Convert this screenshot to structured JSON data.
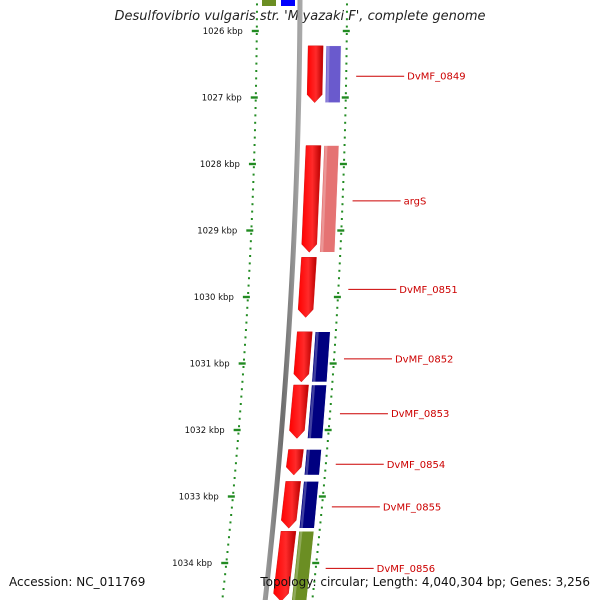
{
  "title": "Desulfovibrio vulgaris str. 'Miyazaki F', complete genome",
  "footer": {
    "accession": "Accession: NC_011769",
    "topology": "Topology: circular; Length: 4,040,304 bp; Genes: 3,256"
  },
  "colors": {
    "cds_arrow": "#ff0000",
    "feature_blue": "#6a5acd",
    "feature_pink": "#e57373",
    "feature_navy": "#000080",
    "feature_olive": "#6b8e23",
    "backbone": "#808080",
    "tick": "#228b22",
    "label": "#cc0000"
  },
  "ticks": [
    {
      "kbp": 1026,
      "label": "1026 kbp"
    },
    {
      "kbp": 1027,
      "label": "1027 kbp"
    },
    {
      "kbp": 1028,
      "label": "1028 kbp"
    },
    {
      "kbp": 1029,
      "label": "1029 kbp"
    },
    {
      "kbp": 1030,
      "label": "1030 kbp"
    },
    {
      "kbp": 1031,
      "label": "1031 kbp"
    },
    {
      "kbp": 1032,
      "label": "1032 kbp"
    },
    {
      "kbp": 1033,
      "label": "1033 kbp"
    },
    {
      "kbp": 1034,
      "label": "1034 kbp"
    }
  ],
  "genes": [
    {
      "label": "DvMF_0849",
      "start_kbp": 1026.2,
      "end_kbp": 1027.1,
      "feature_color": "feature_blue"
    },
    {
      "label": "argS",
      "start_kbp": 1027.7,
      "end_kbp": 1029.35,
      "feature_color": "feature_pink"
    },
    {
      "label": "DvMF_0851",
      "start_kbp": 1029.38,
      "end_kbp": 1030.33,
      "feature_color": ""
    },
    {
      "label": "DvMF_0852",
      "start_kbp": 1030.5,
      "end_kbp": 1031.3,
      "feature_color": "feature_navy"
    },
    {
      "label": "DvMF_0853",
      "start_kbp": 1031.3,
      "end_kbp": 1032.15,
      "feature_color": "feature_navy"
    },
    {
      "label": "DvMF_0854",
      "start_kbp": 1032.27,
      "end_kbp": 1032.7,
      "feature_color": "feature_navy"
    },
    {
      "label": "DvMF_0855",
      "start_kbp": 1032.75,
      "end_kbp": 1033.5,
      "feature_color": "feature_navy"
    },
    {
      "label": "DvMF_0856",
      "start_kbp": 1033.5,
      "end_kbp": 1034.6,
      "feature_color": "feature_olive"
    }
  ]
}
